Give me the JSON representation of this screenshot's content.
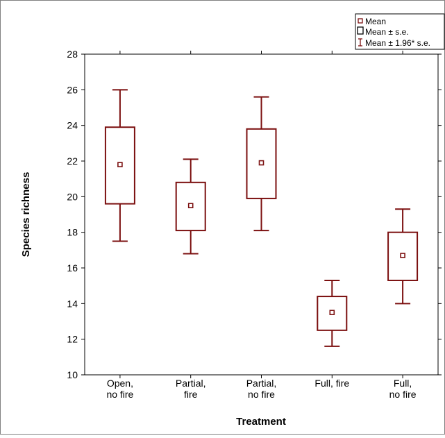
{
  "chart_data": {
    "type": "box",
    "categories": [
      "Open,\nno fire",
      "Partial,\nfire",
      "Partial,\nno fire",
      "Full, fire",
      "Full,\nno fire"
    ],
    "mean": [
      21.8,
      19.5,
      21.9,
      13.5,
      16.7
    ],
    "se_low": [
      19.6,
      18.1,
      19.9,
      12.5,
      15.3
    ],
    "se_high": [
      23.9,
      20.8,
      23.8,
      14.4,
      18.0
    ],
    "ci95_low": [
      17.5,
      16.8,
      18.1,
      11.6,
      14.0
    ],
    "ci95_high": [
      26.0,
      22.1,
      25.6,
      15.3,
      19.3
    ],
    "xlabel": "Treatment",
    "ylabel": "Species richness",
    "ylim": [
      10,
      28
    ],
    "yticks": [
      10,
      12,
      14,
      16,
      18,
      20,
      22,
      24,
      26,
      28
    ],
    "legend": {
      "position": "top-right",
      "items": [
        "Mean",
        "Mean ± s.e.",
        "Mean ± 1.96* s.e."
      ]
    },
    "color": "#7b0f0f"
  }
}
